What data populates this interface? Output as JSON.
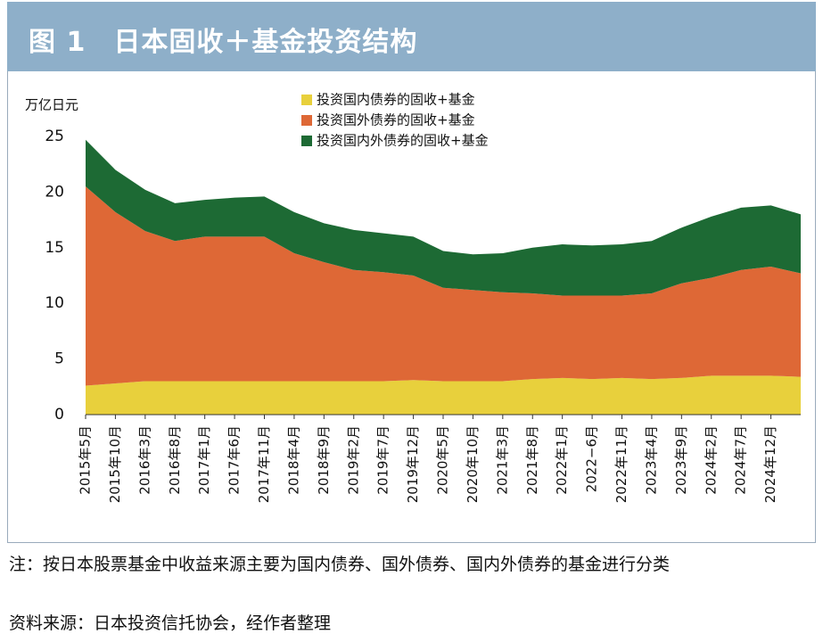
{
  "chart_data": {
    "type": "stacked_area",
    "title": "图 1　日本固收＋基金投资结构",
    "y_axis_label": "万亿日元",
    "categories": [
      "2015年5月",
      "2015年10月",
      "2016年3月",
      "2016年8月",
      "2017年1月",
      "2017年6月",
      "2017年11月",
      "2018年4月",
      "2018年9月",
      "2019年2月",
      "2019年7月",
      "2019年12月",
      "2020年5月",
      "2020年10月",
      "2021年3月",
      "2021年8月",
      "2022年1月",
      "2022−6月",
      "2022年11月",
      "2023年4月",
      "2023年9月",
      "2024年2月",
      "2024年7月",
      "2024年12月",
      null
    ],
    "series": [
      {
        "name": "投资国内债券的固收+基金",
        "color": "#e8d03c",
        "values": [
          2.6,
          2.8,
          3.0,
          3.0,
          3.0,
          3.0,
          3.0,
          3.0,
          3.0,
          3.0,
          3.0,
          3.1,
          3.0,
          3.0,
          3.0,
          3.2,
          3.3,
          3.2,
          3.3,
          3.2,
          3.3,
          3.5,
          3.5,
          3.5,
          3.4
        ]
      },
      {
        "name": "投资国外债券的固收+基金",
        "color": "#de6836",
        "values": [
          17.9,
          15.4,
          13.5,
          12.6,
          13.0,
          13.0,
          13.0,
          11.5,
          10.7,
          10.0,
          9.8,
          9.4,
          8.4,
          8.2,
          8.0,
          7.7,
          7.4,
          7.5,
          7.4,
          7.7,
          8.5,
          8.8,
          9.5,
          9.8,
          9.3
        ]
      },
      {
        "name": "投资国内外债券的固收+基金",
        "color": "#1d6a34",
        "values": [
          4.2,
          3.8,
          3.7,
          3.4,
          3.3,
          3.5,
          3.6,
          3.7,
          3.5,
          3.6,
          3.5,
          3.5,
          3.3,
          3.2,
          3.5,
          4.1,
          4.6,
          4.5,
          4.6,
          4.7,
          5.0,
          5.5,
          5.6,
          5.5,
          5.3
        ]
      }
    ],
    "ylim": [
      0,
      25
    ],
    "yticks": [
      0,
      5,
      10,
      15,
      20,
      25
    ],
    "grid": false
  },
  "notes": [
    "注：按日本股票基金中收益来源主要为国内债券、国外债券、国内外债券的基金进行分类",
    "资料来源：日本投资信托协会，经作者整理"
  ]
}
